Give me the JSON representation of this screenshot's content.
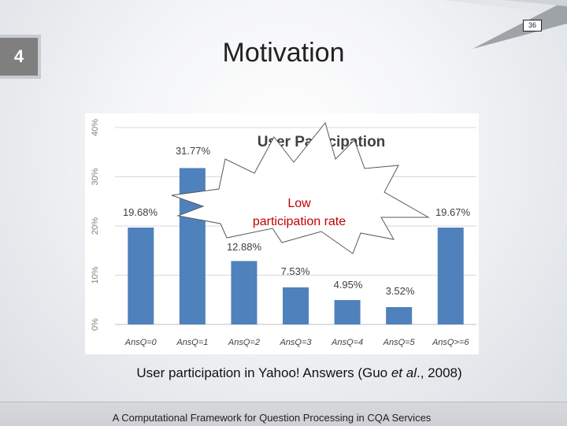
{
  "page_number": "36",
  "slide_number": "4",
  "title": "Motivation",
  "caption": {
    "prefix": "User participation in Yahoo! Answers  (Guo ",
    "italic": "et al",
    "suffix": "., 2008)"
  },
  "footer": "A Computational Framework for Question Processing in CQA Services",
  "callout": {
    "line1": "Low",
    "line2": "participation rate"
  },
  "colors": {
    "bar": "#4f81bd",
    "callout_text": "#c00000",
    "slide_number_bg": "#7f7f7f"
  },
  "chart_data": {
    "type": "bar",
    "title": "User Participation",
    "categories": [
      "AnsQ=0",
      "AnsQ=1",
      "AnsQ=2",
      "AnsQ=3",
      "AnsQ=4",
      "AnsQ=5",
      "AnsQ>=6"
    ],
    "values": [
      19.68,
      31.77,
      12.88,
      7.53,
      4.95,
      3.52,
      19.67
    ],
    "data_labels": [
      "19.68%",
      "31.77%",
      "12.88%",
      "7.53%",
      "4.95%",
      "3.52%",
      "19.67%"
    ],
    "y_ticks": [
      "0%",
      "10%",
      "20%",
      "30%",
      "40%"
    ],
    "ylim": [
      0,
      40
    ],
    "grid": true,
    "legend": "none"
  }
}
